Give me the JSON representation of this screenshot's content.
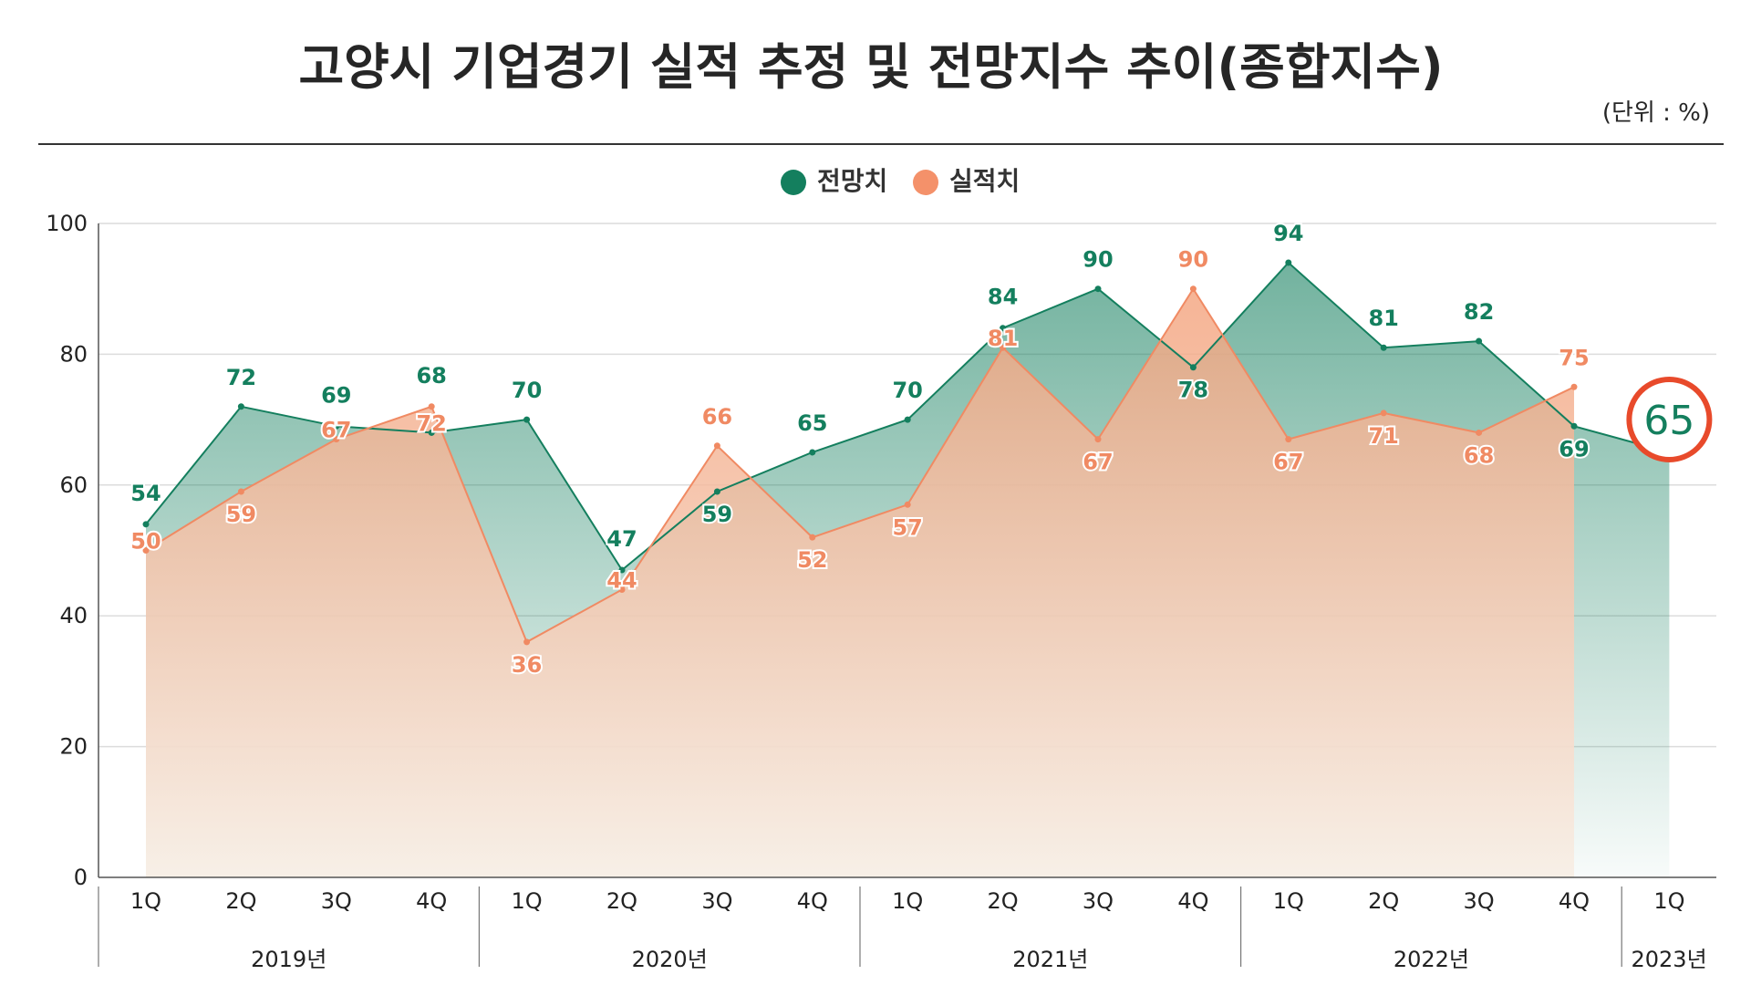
{
  "title": "고양시 기업경기 실적 추정 및 전망지수 추이(종합지수)",
  "unit_label": "(단위 : %)",
  "colors": {
    "forecast": "#147f5e",
    "actual": "#f08a63",
    "highlight": "#e84a2b",
    "grid": "#dcdcdc",
    "axis": "#555555"
  },
  "chart_data": {
    "type": "area",
    "title": "고양시 기업경기 실적 추정 및 전망지수 추이(종합지수)",
    "ylim": [
      0,
      100
    ],
    "yticks": [
      0,
      20,
      40,
      60,
      80,
      100
    ],
    "ytick_labels": [
      "0",
      "20",
      "40",
      "60",
      "80",
      "100"
    ],
    "grid": true,
    "legend": "top-center",
    "categories": [
      "1Q",
      "2Q",
      "3Q",
      "4Q",
      "1Q",
      "2Q",
      "3Q",
      "4Q",
      "1Q",
      "2Q",
      "3Q",
      "4Q",
      "1Q",
      "2Q",
      "3Q",
      "4Q",
      "1Q"
    ],
    "years": [
      {
        "label": "2019년",
        "span": 4
      },
      {
        "label": "2020년",
        "span": 4
      },
      {
        "label": "2021년",
        "span": 4
      },
      {
        "label": "2022년",
        "span": 4
      },
      {
        "label": "2023년",
        "span": 1
      }
    ],
    "series": [
      {
        "name": "전망치",
        "key": "forecast",
        "values": [
          54,
          72,
          69,
          68,
          70,
          47,
          59,
          65,
          70,
          84,
          90,
          78,
          94,
          81,
          82,
          69,
          65
        ],
        "labels": [
          "54",
          "72",
          "69",
          "68",
          "70",
          "47",
          "59",
          "65",
          "70",
          "84",
          "90",
          "78",
          "94",
          "81",
          "82",
          "69",
          "65"
        ]
      },
      {
        "name": "실적치",
        "key": "actual",
        "values": [
          50,
          59,
          67,
          72,
          36,
          44,
          66,
          52,
          57,
          81,
          67,
          90,
          67,
          71,
          68,
          75,
          null
        ],
        "labels": [
          "50",
          "59",
          "67",
          "72",
          "36",
          "44",
          "66",
          "52",
          "57",
          "81",
          "67",
          "90",
          "67",
          "71",
          "68",
          "75",
          null
        ]
      }
    ],
    "highlight": {
      "series": "forecast",
      "index": 16,
      "label": "65"
    }
  }
}
